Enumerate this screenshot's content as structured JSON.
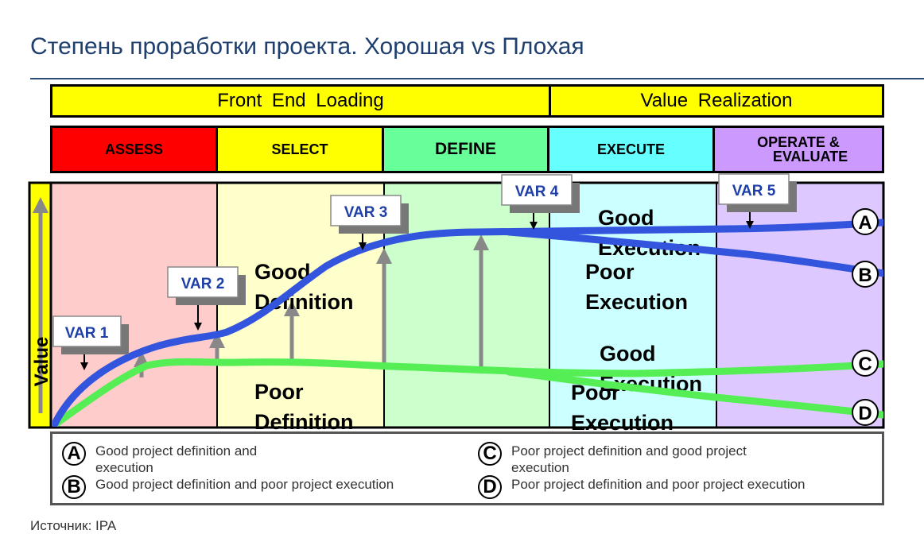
{
  "title": "Степень проработки проекта. Хорошая vs Плохая",
  "stages": {
    "front_end_loading": "Front End Loading",
    "value_realization": "Value Realization"
  },
  "phases": [
    "ASSESS",
    "SELECT",
    "DEFINE",
    "EXECUTE",
    "OPERATE &",
    "EVALUATE"
  ],
  "axis_label": "Value",
  "var_labels": [
    "VAR 1",
    "VAR 2",
    "VAR 3",
    "VAR 4",
    "VAR 5"
  ],
  "annotations": {
    "good_definition": [
      "Good",
      "Definition"
    ],
    "poor_definition": [
      "Poor",
      "Definition"
    ],
    "good_execution_upper": [
      "Good",
      "Execution"
    ],
    "poor_execution_upper": [
      "Poor",
      "Execution"
    ],
    "good_execution_lower": [
      "Good",
      "Execution"
    ],
    "poor_execution_lower": [
      "Poor",
      "Execution"
    ]
  },
  "curve_markers": [
    "A",
    "B",
    "C",
    "D"
  ],
  "colors": {
    "good_curve": "#3355dd",
    "poor_curve": "#55ee55",
    "var_text": "#1f3fa8",
    "title": "#1f3f6e"
  },
  "legend": [
    {
      "key": "A",
      "lines": [
        "Good project definition and",
        "execution"
      ]
    },
    {
      "key": "B",
      "lines": [
        "Good project definition and poor project execution"
      ]
    },
    {
      "key": "C",
      "lines": [
        "Poor project definition and good project",
        "execution"
      ]
    },
    {
      "key": "D",
      "lines": [
        "Poor project definition and poor project execution"
      ]
    }
  ],
  "source": "Источник: IPA"
}
